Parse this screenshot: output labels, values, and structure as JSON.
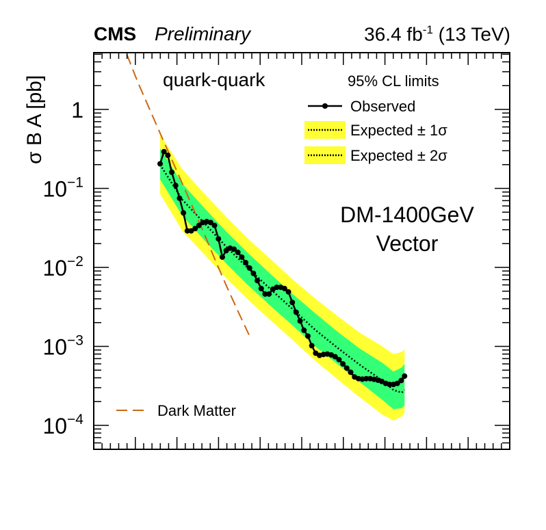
{
  "header": {
    "experiment": "CMS",
    "status": "Preliminary",
    "lumi_main": "36.4 fb",
    "lumi_sup": "-1",
    "lumi_energy": " (13 TeV)"
  },
  "chart_data": {
    "type": "line",
    "ylabel": "σ B A [pb]",
    "xlabel": "",
    "y_scale": "log",
    "ylim": [
      5e-05,
      5
    ],
    "xlim": [
      0,
      100
    ],
    "y_ticks": [
      {
        "value": 1,
        "base": "1",
        "exp": ""
      },
      {
        "value": 0.1,
        "base": "10",
        "exp": "−1"
      },
      {
        "value": 0.01,
        "base": "10",
        "exp": "−2"
      },
      {
        "value": 0.001,
        "base": "10",
        "exp": "−3"
      },
      {
        "value": 0.0001,
        "base": "10",
        "exp": "−4"
      }
    ],
    "channel_label": "quark-quark",
    "model_label_line1": "DM-1400GeV",
    "model_label_line2": "Vector",
    "legend": {
      "title": "95% CL limits",
      "observed": "Observed",
      "expected_1sigma": "Expected ± 1σ",
      "expected_2sigma": "Expected ± 2σ",
      "dark_matter": "Dark Matter"
    },
    "colors": {
      "observed": "#000000",
      "band_1sigma": "#33ff77",
      "band_2sigma": "#ffff33",
      "dark_matter": "#cc6611"
    },
    "series": [
      {
        "name": "Observed",
        "points": [
          [
            16,
            0.205
          ],
          [
            17.4,
            0.292
          ],
          [
            18.8,
            0.262
          ],
          [
            20.2,
            0.16
          ],
          [
            21.6,
            0.109
          ],
          [
            23.0,
            0.075
          ],
          [
            24.4,
            0.049
          ],
          [
            25.8,
            0.029
          ],
          [
            27.2,
            0.029
          ],
          [
            28.6,
            0.031
          ],
          [
            30.0,
            0.034
          ],
          [
            31.4,
            0.037
          ],
          [
            32.8,
            0.038
          ],
          [
            34.2,
            0.037
          ],
          [
            35.6,
            0.034
          ],
          [
            37.0,
            0.023
          ],
          [
            38.4,
            0.0135
          ],
          [
            39.8,
            0.0163
          ],
          [
            41.2,
            0.0175
          ],
          [
            42.6,
            0.017
          ],
          [
            44.0,
            0.0155
          ],
          [
            45.4,
            0.0135
          ],
          [
            46.8,
            0.0115
          ],
          [
            48.2,
            0.0098
          ],
          [
            49.6,
            0.0084
          ],
          [
            51.0,
            0.0068
          ],
          [
            52.4,
            0.0054
          ],
          [
            53.8,
            0.0046
          ],
          [
            55.2,
            0.0046
          ],
          [
            56.6,
            0.0053
          ],
          [
            58.0,
            0.0056
          ],
          [
            59.4,
            0.0056
          ],
          [
            60.8,
            0.0054
          ],
          [
            62.2,
            0.0049
          ],
          [
            63.6,
            0.0036
          ],
          [
            65.0,
            0.0027
          ],
          [
            66.4,
            0.0021
          ],
          [
            67.8,
            0.0016
          ],
          [
            69.2,
            0.00135
          ],
          [
            70.6,
            0.00102
          ],
          [
            72.0,
            0.00082
          ],
          [
            73.4,
            0.00077
          ],
          [
            74.8,
            0.00079
          ],
          [
            76.2,
            0.0008
          ],
          [
            77.6,
            0.00078
          ],
          [
            79.0,
            0.00074
          ],
          [
            80.4,
            0.00068
          ],
          [
            81.8,
            0.0006
          ],
          [
            83.2,
            0.00053
          ],
          [
            84.6,
            0.00047
          ],
          [
            86.0,
            0.00041
          ],
          [
            87.4,
            0.00039
          ],
          [
            88.8,
            0.000385
          ],
          [
            90.2,
            0.00039
          ],
          [
            91.6,
            0.00039
          ],
          [
            93.0,
            0.000383
          ],
          [
            94.4,
            0.000373
          ],
          [
            95.8,
            0.00036
          ],
          [
            97.2,
            0.00034
          ],
          [
            98.6,
            0.00033
          ],
          [
            100.0,
            0.00033
          ],
          [
            101.4,
            0.00034
          ],
          [
            102.8,
            0.00037
          ],
          [
            104.0,
            0.00042
          ]
        ]
      },
      {
        "name": "Expected",
        "points": [
          [
            16,
            0.2
          ],
          [
            24,
            0.072
          ],
          [
            32,
            0.036
          ],
          [
            40,
            0.018
          ],
          [
            48,
            0.0095
          ],
          [
            56,
            0.0052
          ],
          [
            64,
            0.0029
          ],
          [
            72,
            0.0016
          ],
          [
            80,
            0.00095
          ],
          [
            88,
            0.00058
          ],
          [
            96,
            0.00037
          ],
          [
            100,
            0.00028
          ],
          [
            103,
            0.00026
          ],
          [
            104,
            0.00028
          ]
        ]
      },
      {
        "name": "Expected ± 1σ",
        "upper": [
          [
            16,
            0.32
          ],
          [
            24,
            0.115
          ],
          [
            32,
            0.056
          ],
          [
            40,
            0.028
          ],
          [
            48,
            0.0148
          ],
          [
            56,
            0.0081
          ],
          [
            64,
            0.0045
          ],
          [
            72,
            0.0026
          ],
          [
            80,
            0.00152
          ],
          [
            88,
            0.00093
          ],
          [
            96,
            0.00062
          ],
          [
            100,
            0.00048
          ],
          [
            103,
            0.00054
          ],
          [
            104,
            0.0006
          ]
        ],
        "lower": [
          [
            16,
            0.13
          ],
          [
            24,
            0.045
          ],
          [
            32,
            0.022
          ],
          [
            40,
            0.011
          ],
          [
            48,
            0.0058
          ],
          [
            56,
            0.0032
          ],
          [
            64,
            0.0018
          ],
          [
            72,
            0.00099
          ],
          [
            80,
            0.00059
          ],
          [
            88,
            0.00035
          ],
          [
            96,
            0.00021
          ],
          [
            100,
            0.00016
          ],
          [
            103,
            0.000165
          ],
          [
            104,
            0.00018
          ]
        ]
      },
      {
        "name": "Expected ± 2σ",
        "upper": [
          [
            16,
            0.48
          ],
          [
            24,
            0.175
          ],
          [
            32,
            0.085
          ],
          [
            40,
            0.043
          ],
          [
            48,
            0.0225
          ],
          [
            56,
            0.0125
          ],
          [
            64,
            0.0069
          ],
          [
            72,
            0.004
          ],
          [
            80,
            0.0024
          ],
          [
            88,
            0.00148
          ],
          [
            96,
            0.001
          ],
          [
            100,
            0.0008
          ],
          [
            103,
            0.00085
          ],
          [
            104,
            0.00092
          ]
        ],
        "lower": [
          [
            16,
            0.085
          ],
          [
            24,
            0.029
          ],
          [
            32,
            0.0145
          ],
          [
            40,
            0.0072
          ],
          [
            48,
            0.0038
          ],
          [
            56,
            0.0021
          ],
          [
            64,
            0.00118
          ],
          [
            72,
            0.00065
          ],
          [
            80,
            0.00038
          ],
          [
            88,
            0.000225
          ],
          [
            96,
            0.000137
          ],
          [
            100,
            0.000115
          ],
          [
            103,
            0.00013
          ],
          [
            104,
            0.000145
          ]
        ]
      },
      {
        "name": "Dark Matter",
        "points": [
          [
            4,
            5
          ],
          [
            8,
            2.2
          ],
          [
            12,
            1.05
          ],
          [
            16,
            0.5
          ],
          [
            20,
            0.24
          ],
          [
            24,
            0.115
          ],
          [
            28,
            0.055
          ],
          [
            32,
            0.026
          ],
          [
            36,
            0.012
          ],
          [
            40,
            0.0057
          ],
          [
            44,
            0.0028
          ],
          [
            48,
            0.0014
          ]
        ]
      }
    ]
  }
}
